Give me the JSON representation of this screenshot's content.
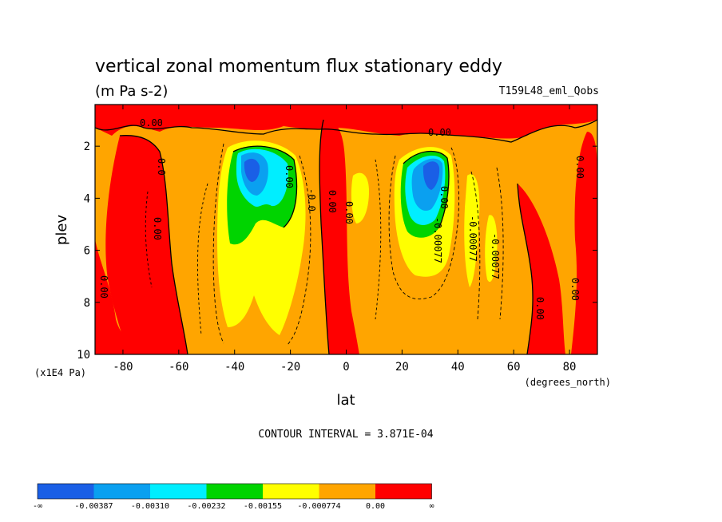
{
  "chart_data": {
    "type": "heatmap",
    "title": "vertical zonal momentum flux stationary eddy",
    "units": "(m Pa s-2)",
    "run_label": "T159L48_eml_Qobs",
    "xlabel": "lat",
    "x_unit": "(degrees_north)",
    "ylabel": "plev",
    "y_unit": "(x1E4 Pa)",
    "xlim": [
      -90,
      90
    ],
    "ylim": [
      10,
      0.4
    ],
    "xticks": [
      "-80",
      "-60",
      "-40",
      "-20",
      "0",
      "20",
      "40",
      "60",
      "80"
    ],
    "yticks": [
      "2",
      "4",
      "6",
      "8",
      "10"
    ],
    "contour_interval_text": "CONTOUR INTERVAL = 3.871E-04",
    "colorbar": {
      "levels": [
        "-∞",
        "-0.00387",
        "-0.00310",
        "-0.00232",
        "-0.00155",
        "-0.000774",
        "0.00",
        "∞"
      ],
      "colors": [
        "#1a5fe6",
        "#0aa0f0",
        "#00eeff",
        "#00d400",
        "#ffff00",
        "#ffa500",
        "#ff0000"
      ]
    },
    "contour_labels": [
      "0.00",
      "0.00",
      "0.00",
      "0.00",
      "0.00",
      "0.00",
      "0.00",
      "0.00",
      "0.00",
      "0.00",
      "0.00",
      "-0.00077",
      "-0.00077",
      "-0.00077",
      "-0.0",
      "0.0"
    ],
    "background_class_color": "#ffa500",
    "regions": [
      {
        "class": "positive",
        "color": "#ff0000",
        "label": "southern high-latitude column"
      },
      {
        "class": "positive",
        "color": "#ff0000",
        "label": "equatorial column"
      },
      {
        "class": "negative",
        "color": "#0aa0f0",
        "label": "southern mid-latitude core"
      },
      {
        "class": "negative",
        "color": "#0aa0f0",
        "label": "northern mid-latitude core"
      }
    ]
  }
}
